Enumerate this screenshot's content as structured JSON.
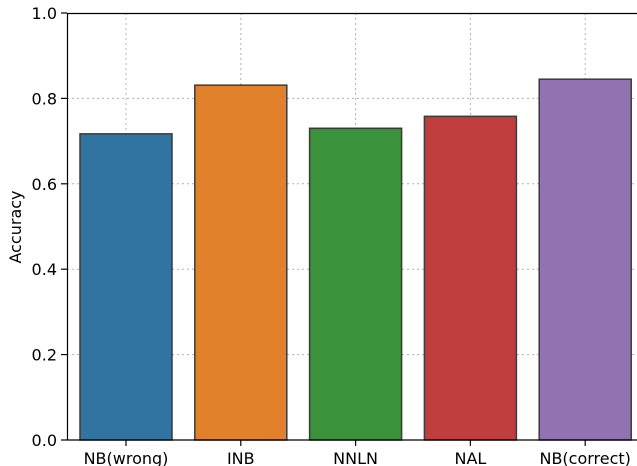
{
  "chart_data": {
    "type": "bar",
    "categories": [
      "NB(wrong)",
      "INB",
      "NNLN",
      "NAL",
      "NB(correct)"
    ],
    "values": [
      0.717,
      0.831,
      0.73,
      0.758,
      0.845
    ],
    "colors": [
      "#3274a1",
      "#e1812c",
      "#3a923a",
      "#c03d3e",
      "#9372b2"
    ],
    "title": "",
    "xlabel": "",
    "ylabel": "Accuracy",
    "ylim": [
      0,
      1.0
    ],
    "yticks": [
      "0.0",
      "0.2",
      "0.4",
      "0.6",
      "0.8",
      "1.0"
    ],
    "grid": true,
    "legend": "none"
  }
}
